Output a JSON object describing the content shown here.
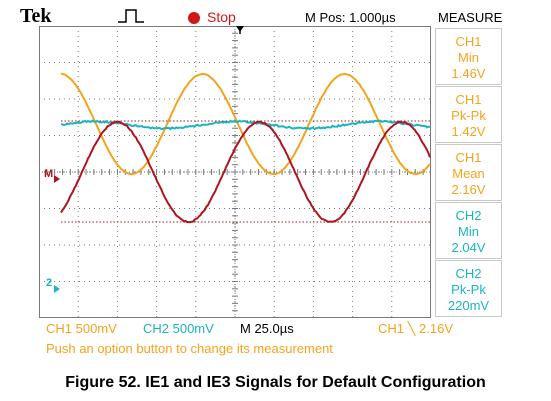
{
  "header": {
    "brand": "Tek",
    "status": "Stop",
    "mpos": "M Pos: 1.000µs",
    "measure_title": "MEASURE"
  },
  "markers": {
    "ch1_level": "M",
    "ch2_level": "2"
  },
  "measurements": [
    {
      "channel": "CH1",
      "type": "Min",
      "value": "1.46V"
    },
    {
      "channel": "CH1",
      "type": "Pk-Pk",
      "value": "1.42V"
    },
    {
      "channel": "CH1",
      "type": "Mean",
      "value": "2.16V"
    },
    {
      "channel": "CH2",
      "type": "Min",
      "value": "2.04V"
    },
    {
      "channel": "CH2",
      "type": "Pk-Pk",
      "value": "220mV"
    }
  ],
  "footer": {
    "ch1_scale": "CH1  500mV",
    "ch2_scale": "CH2  500mV",
    "time_scale": "M 25.0µs",
    "trigger": "CH1 ╲ 2.16V",
    "help": "Push an option button to change its measurement"
  },
  "caption": "Figure 52. IE1 and IE3 Signals for Default Configuration",
  "colors": {
    "ch1": "#f4a41c",
    "ch2": "#1cb4c0",
    "math": "#b0141e",
    "grid": "#7a7a7a",
    "stop": "#d21818"
  }
}
